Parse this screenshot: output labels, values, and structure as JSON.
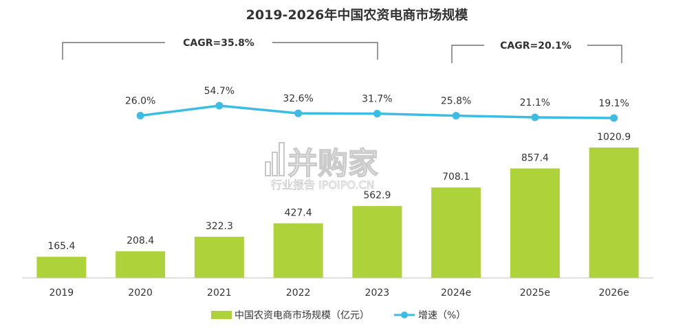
{
  "chart_data": {
    "type": "bar",
    "title": "2019-2026年中国农资电商市场规模",
    "categories": [
      "2019",
      "2020",
      "2021",
      "2022",
      "2023",
      "2024e",
      "2025e",
      "2026e"
    ],
    "series": [
      {
        "name": "中国农资电商市场规模（亿元）",
        "type": "bar",
        "color": "#aed33a",
        "values": [
          165.4,
          208.4,
          322.3,
          427.4,
          562.9,
          708.1,
          857.4,
          1020.9
        ],
        "labels": [
          "165.4",
          "208.4",
          "322.3",
          "427.4",
          "562.9",
          "708.1",
          "857.4",
          "1020.9"
        ]
      },
      {
        "name": "增速（%）",
        "type": "line",
        "color": "#3bbde3",
        "values": [
          null,
          26.0,
          54.7,
          32.6,
          31.7,
          25.8,
          21.1,
          19.1
        ],
        "labels": [
          "",
          "26.0%",
          "54.7%",
          "32.6%",
          "31.7%",
          "25.8%",
          "21.1%",
          "19.1%"
        ]
      }
    ],
    "annotations": [
      {
        "text": "CAGR=35.8%",
        "from": "2019",
        "to": "2023"
      },
      {
        "text": "CAGR=20.1%",
        "from": "2024e",
        "to": "2026e"
      }
    ],
    "watermark": {
      "main": "并购家",
      "sub": "行业报告 IPOIPO.CN"
    },
    "legend_position": "bottom",
    "grid": false
  }
}
